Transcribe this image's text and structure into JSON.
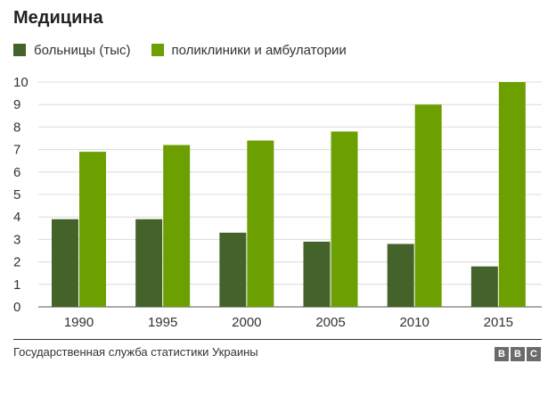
{
  "chart_data": {
    "type": "bar",
    "title": "Медицина",
    "categories": [
      "1990",
      "1995",
      "2000",
      "2005",
      "2010",
      "2015"
    ],
    "series": [
      {
        "name": "больницы (тыс)",
        "color": "#44632a",
        "values": [
          3.9,
          3.9,
          3.3,
          2.9,
          2.8,
          1.8
        ]
      },
      {
        "name": "поликлиники и амбулатории",
        "color": "#6ba000",
        "values": [
          6.9,
          7.2,
          7.4,
          7.8,
          9.0,
          10.0
        ]
      }
    ],
    "ylim": [
      0,
      10
    ],
    "yticks": [
      "0",
      "1",
      "2",
      "3",
      "4",
      "5",
      "6",
      "7",
      "8",
      "9",
      "10"
    ],
    "grid": true,
    "legend_position": "top-left"
  },
  "footer": {
    "source": "Государственная служба статистики Украины",
    "logo_letters": [
      "B",
      "B",
      "C"
    ]
  }
}
